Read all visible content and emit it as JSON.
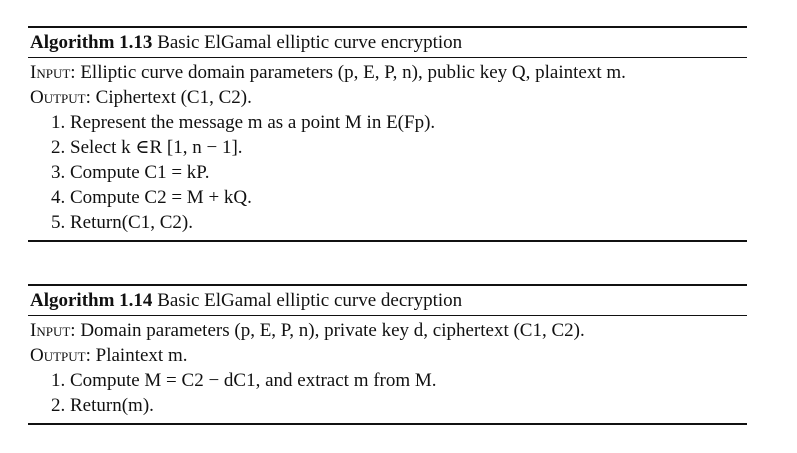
{
  "algorithm1": {
    "label": "Algorithm 1.13",
    "title": "Basic ElGamal elliptic curve encryption",
    "input_label": "Input:",
    "input_text": "Elliptic curve domain parameters (p, E, P, n), public key Q, plaintext m.",
    "output_label": "Output:",
    "output_text": "Ciphertext (C1, C2).",
    "steps": [
      "1. Represent the message m as a point M in E(Fp).",
      "2. Select k ∈R [1, n − 1].",
      "3. Compute C1 = kP.",
      "4. Compute C2 = M + kQ.",
      "5. Return(C1, C2)."
    ]
  },
  "algorithm2": {
    "label": "Algorithm 1.14",
    "title": "Basic ElGamal elliptic curve decryption",
    "input_label": "Input:",
    "input_text": "Domain parameters (p, E, P, n), private key d, ciphertext (C1, C2).",
    "output_label": "Output:",
    "output_text": "Plaintext m.",
    "steps": [
      "1. Compute M = C2 − dC1, and extract m from M.",
      "2. Return(m)."
    ]
  }
}
